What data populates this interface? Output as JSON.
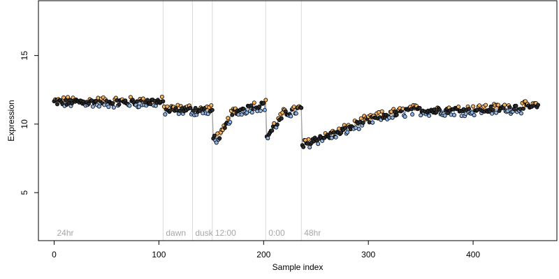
{
  "chart_data": {
    "type": "scatter",
    "xlabel": "Sample index",
    "ylabel": "Expression",
    "xlim": [
      -15,
      480
    ],
    "ylim": [
      1.5,
      19
    ],
    "x_ticks": [
      0,
      100,
      200,
      300,
      400
    ],
    "y_ticks": [
      5,
      10,
      15
    ],
    "grid": false,
    "colors": {
      "point_fill_dark": "#2b2b2b",
      "point_fill_orange": "#f5b25b",
      "point_fill_blue": "#8fb3e3",
      "segment_orange": "#f0a040",
      "segment_blue": "#7aa0d8",
      "step_line": "#a0a0a0",
      "divider": "#d9d9d9",
      "segment_label": "#a6a6a6"
    },
    "segments": [
      {
        "label": "24hr",
        "start": 0,
        "end": 104
      },
      {
        "label": "dawn",
        "start": 104,
        "end": 132
      },
      {
        "label": "dusk",
        "start": 132,
        "end": 151
      },
      {
        "label": "12:00",
        "start": 151,
        "end": 202
      },
      {
        "label": "0:00",
        "start": 202,
        "end": 236
      },
      {
        "label": "48hr",
        "start": 236,
        "end": 463
      }
    ],
    "dividers": [
      104,
      132,
      151,
      202,
      236
    ],
    "level_curve": [
      [
        0,
        11.6
      ],
      [
        104,
        11.6
      ],
      [
        104,
        11.05
      ],
      [
        132,
        11.05
      ],
      [
        132,
        11.0
      ],
      [
        151,
        11.0
      ],
      [
        151,
        8.9
      ],
      [
        160,
        9.2
      ],
      [
        170,
        10.8
      ],
      [
        190,
        11.3
      ],
      [
        202,
        11.4
      ],
      [
        202,
        9.0
      ],
      [
        210,
        9.8
      ],
      [
        220,
        10.8
      ],
      [
        236,
        11.1
      ],
      [
        236,
        8.4
      ],
      [
        250,
        8.9
      ],
      [
        270,
        9.3
      ],
      [
        290,
        10.0
      ],
      [
        310,
        10.5
      ],
      [
        340,
        11.0
      ],
      [
        380,
        11.0
      ],
      [
        420,
        11.1
      ],
      [
        463,
        11.3
      ]
    ],
    "amplitude": 0.35,
    "point_count": 463,
    "notes": "Points: ~463 samples; values oscillate around level_curve with small noise; colored fills/segments mark deviation above (orange) or below (blue) the local level."
  }
}
